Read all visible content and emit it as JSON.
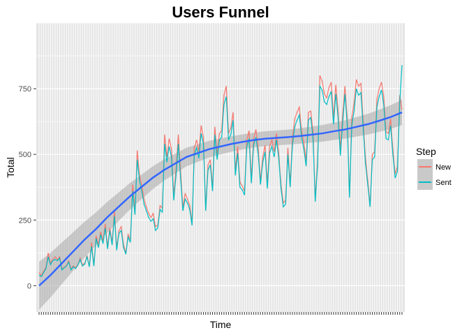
{
  "chart_data": {
    "type": "line",
    "title": "Users Funnel",
    "xlabel": "Time",
    "ylabel": "Total",
    "ylim": [
      -100,
      1000
    ],
    "yticks": [
      0,
      250,
      500,
      750
    ],
    "grid": true,
    "legend": {
      "title": "Step",
      "position": "right",
      "entries": [
        {
          "label": "New",
          "color": "#F8766D"
        },
        {
          "label": "Sent",
          "color": "#00BFC4"
        }
      ]
    },
    "x_count": 160,
    "series": [
      {
        "name": "New",
        "color": "#F8766D",
        "values": [
          50,
          38,
          55,
          70,
          125,
          85,
          100,
          110,
          100,
          110,
          65,
          70,
          78,
          95,
          65,
          75,
          68,
          80,
          105,
          80,
          85,
          115,
          75,
          165,
          80,
          190,
          155,
          205,
          170,
          235,
          150,
          220,
          165,
          285,
          145,
          210,
          225,
          155,
          125,
          195,
          175,
          385,
          280,
          515,
          420,
          380,
          330,
          300,
          275,
          260,
          275,
          225,
          230,
          305,
          295,
          575,
          490,
          560,
          520,
          345,
          445,
          575,
          435,
          300,
          350,
          330,
          305,
          240,
          525,
          555,
          510,
          610,
          565,
          300,
          460,
          480,
          375,
          605,
          500,
          580,
          590,
          725,
          760,
          580,
          600,
          660,
          440,
          530,
          395,
          380,
          360,
          555,
          590,
          410,
          560,
          595,
          525,
          400,
          490,
          535,
          390,
          530,
          555,
          510,
          580,
          505,
          385,
          315,
          325,
          525,
          390,
          560,
          635,
          660,
          680,
          590,
          545,
          475,
          660,
          665,
          590,
          335,
          475,
          800,
          780,
          730,
          715,
          755,
          775,
          640,
          765,
          665,
          520,
          650,
          760,
          640,
          350,
          640,
          695,
          785,
          760,
          770,
          625,
          485,
          400,
          310,
          500,
          510,
          710,
          750,
          775,
          720,
          585,
          580,
          635,
          520,
          425,
          455,
          725,
          670
        ]
      },
      {
        "name": "Sent",
        "color": "#00BFC4",
        "values": [
          40,
          35,
          50,
          65,
          110,
          80,
          95,
          100,
          95,
          105,
          60,
          68,
          75,
          90,
          60,
          72,
          65,
          78,
          100,
          75,
          82,
          110,
          72,
          150,
          75,
          180,
          145,
          195,
          160,
          220,
          140,
          210,
          155,
          265,
          135,
          200,
          210,
          145,
          120,
          185,
          165,
          360,
          270,
          480,
          400,
          360,
          310,
          285,
          260,
          245,
          255,
          210,
          220,
          290,
          280,
          540,
          470,
          530,
          490,
          325,
          420,
          540,
          410,
          285,
          330,
          315,
          290,
          230,
          500,
          525,
          485,
          580,
          540,
          285,
          440,
          460,
          360,
          575,
          480,
          555,
          565,
          690,
          720,
          555,
          575,
          630,
          420,
          505,
          375,
          365,
          345,
          530,
          560,
          390,
          535,
          565,
          500,
          385,
          470,
          510,
          370,
          505,
          530,
          490,
          555,
          485,
          370,
          300,
          310,
          500,
          375,
          535,
          605,
          630,
          650,
          565,
          520,
          455,
          630,
          640,
          565,
          320,
          455,
          760,
          745,
          700,
          690,
          720,
          740,
          615,
          730,
          640,
          495,
          620,
          730,
          615,
          335,
          610,
          665,
          750,
          725,
          735,
          600,
          465,
          385,
          300,
          480,
          490,
          680,
          720,
          745,
          690,
          560,
          555,
          610,
          500,
          410,
          435,
          695,
          840
        ]
      },
      {
        "name": "trend",
        "color": "#3366FF",
        "values": [
          0,
          40,
          85,
          130,
          175,
          215,
          260,
          300,
          340,
          375,
          410,
          440,
          465,
          490,
          505,
          520,
          530,
          540,
          548,
          555,
          560,
          563,
          566,
          570,
          575,
          580,
          588,
          595,
          605,
          615,
          628,
          642,
          660
        ]
      }
    ]
  }
}
